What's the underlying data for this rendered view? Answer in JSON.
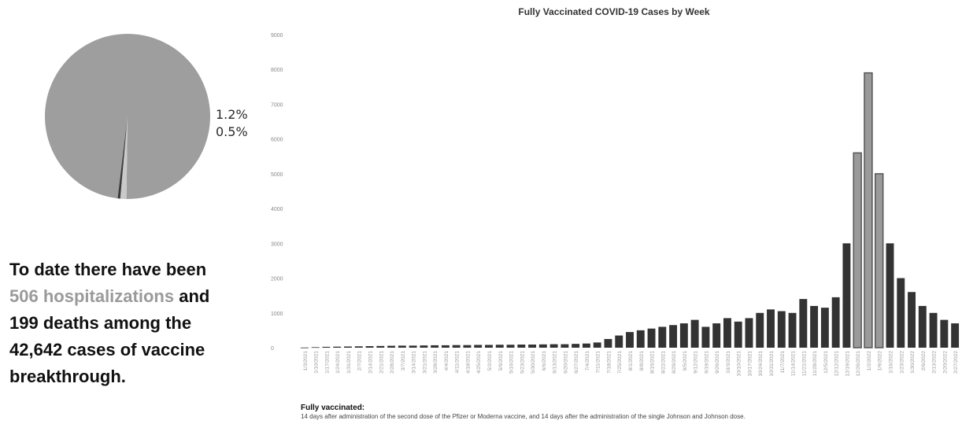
{
  "pie": {
    "slices": [
      {
        "value": 98.3,
        "color": "#9e9e9e"
      },
      {
        "value": 1.2,
        "color": "#c9c9c9"
      },
      {
        "value": 0.5,
        "color": "#3a3a3a"
      }
    ],
    "labels": [
      "1.2%",
      "0.5%"
    ]
  },
  "stat": {
    "line1": "To date there have been",
    "hosp_count": "506",
    "hosp_word": "hospitalizations",
    "and": "and",
    "line3": "199 deaths among the",
    "line4": "42,642 cases of vaccine",
    "line5": "breakthrough."
  },
  "footnote": {
    "title": "Fully vaccinated:",
    "text": "14 days after administration of the second dose of the Pfizer or Moderna vaccine, and 14 days after the administration of the single Johnson and Johnson dose."
  },
  "chart_data": {
    "type": "bar",
    "title": "Fully Vaccinated COVID-19 Cases by Week",
    "ylim": [
      0,
      9000
    ],
    "yticks": [
      0,
      1000,
      2000,
      3000,
      4000,
      5000,
      6000,
      7000,
      8000,
      9000
    ],
    "grid": false,
    "categories": [
      "1/3/2021",
      "1/10/2021",
      "1/17/2021",
      "1/24/2021",
      "1/31/2021",
      "2/7/2021",
      "2/14/2021",
      "2/21/2021",
      "2/28/2021",
      "3/7/2021",
      "3/14/2021",
      "3/21/2021",
      "3/28/2021",
      "4/4/2021",
      "4/11/2021",
      "4/18/2021",
      "4/25/2021",
      "5/2/2021",
      "5/9/2021",
      "5/16/2021",
      "5/23/2021",
      "5/30/2021",
      "6/6/2021",
      "6/13/2021",
      "6/20/2021",
      "6/27/2021",
      "7/4/2021",
      "7/11/2021",
      "7/18/2021",
      "7/25/2021",
      "8/1/2021",
      "8/8/2021",
      "8/15/2021",
      "8/22/2021",
      "8/29/2021",
      "9/5/2021",
      "9/12/2021",
      "9/19/2021",
      "9/26/2021",
      "10/3/2021",
      "10/10/2021",
      "10/17/2021",
      "10/24/2021",
      "10/31/2021",
      "11/7/2021",
      "11/14/2021",
      "11/21/2021",
      "11/28/2021",
      "12/5/2021",
      "12/12/2021",
      "12/19/2021",
      "12/26/2021",
      "1/2/2022",
      "1/9/2022",
      "1/16/2022",
      "1/23/2022",
      "1/30/2022",
      "2/6/2022",
      "2/13/2022",
      "2/20/2022",
      "2/27/2022"
    ],
    "values": [
      5,
      15,
      25,
      30,
      35,
      40,
      45,
      50,
      55,
      60,
      60,
      65,
      70,
      70,
      75,
      75,
      80,
      80,
      85,
      85,
      90,
      90,
      95,
      100,
      100,
      110,
      120,
      150,
      250,
      350,
      450,
      500,
      550,
      600,
      650,
      700,
      800,
      600,
      700,
      850,
      750,
      850,
      1000,
      1100,
      1050,
      1000,
      1400,
      1200,
      1150,
      1450,
      3000,
      5600,
      7900,
      5000,
      3000,
      2000,
      1600,
      1200,
      1000,
      800,
      700
    ],
    "highlight_indices": [
      51,
      52,
      53
    ],
    "colors": {
      "bar": "#333333",
      "highlight": "#9a9a9a"
    }
  }
}
